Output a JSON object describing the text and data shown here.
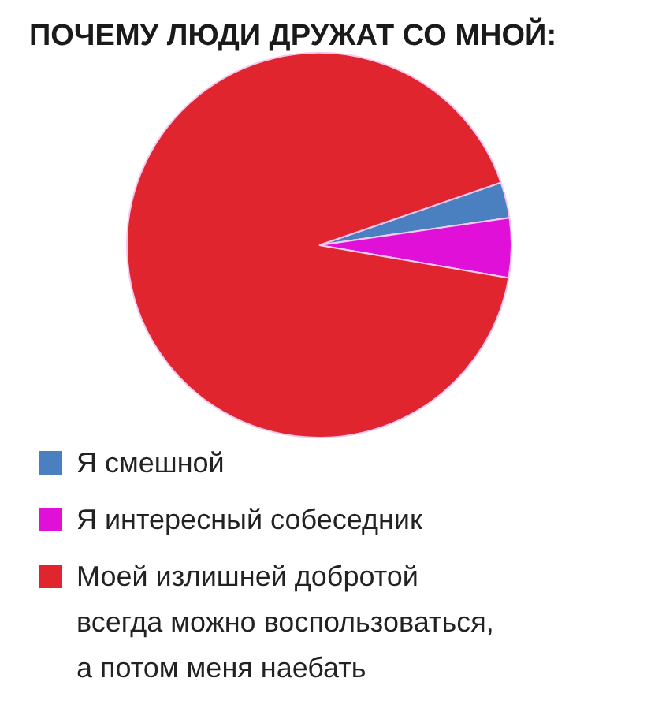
{
  "chart_data": {
    "type": "pie",
    "title": "ПОЧЕМУ ЛЮДИ ДРУЖАТ СО МНОЙ:",
    "categories": [
      "Я смешной",
      "Я интересный собеседник",
      "Моей излишней добротой\nвсегда можно воспользоваться,\nа потом меня наебать"
    ],
    "values": [
      3,
      5,
      92
    ],
    "colors": [
      "#4a7fc0",
      "#e010d8",
      "#e0252f"
    ],
    "legend": "bottom"
  }
}
